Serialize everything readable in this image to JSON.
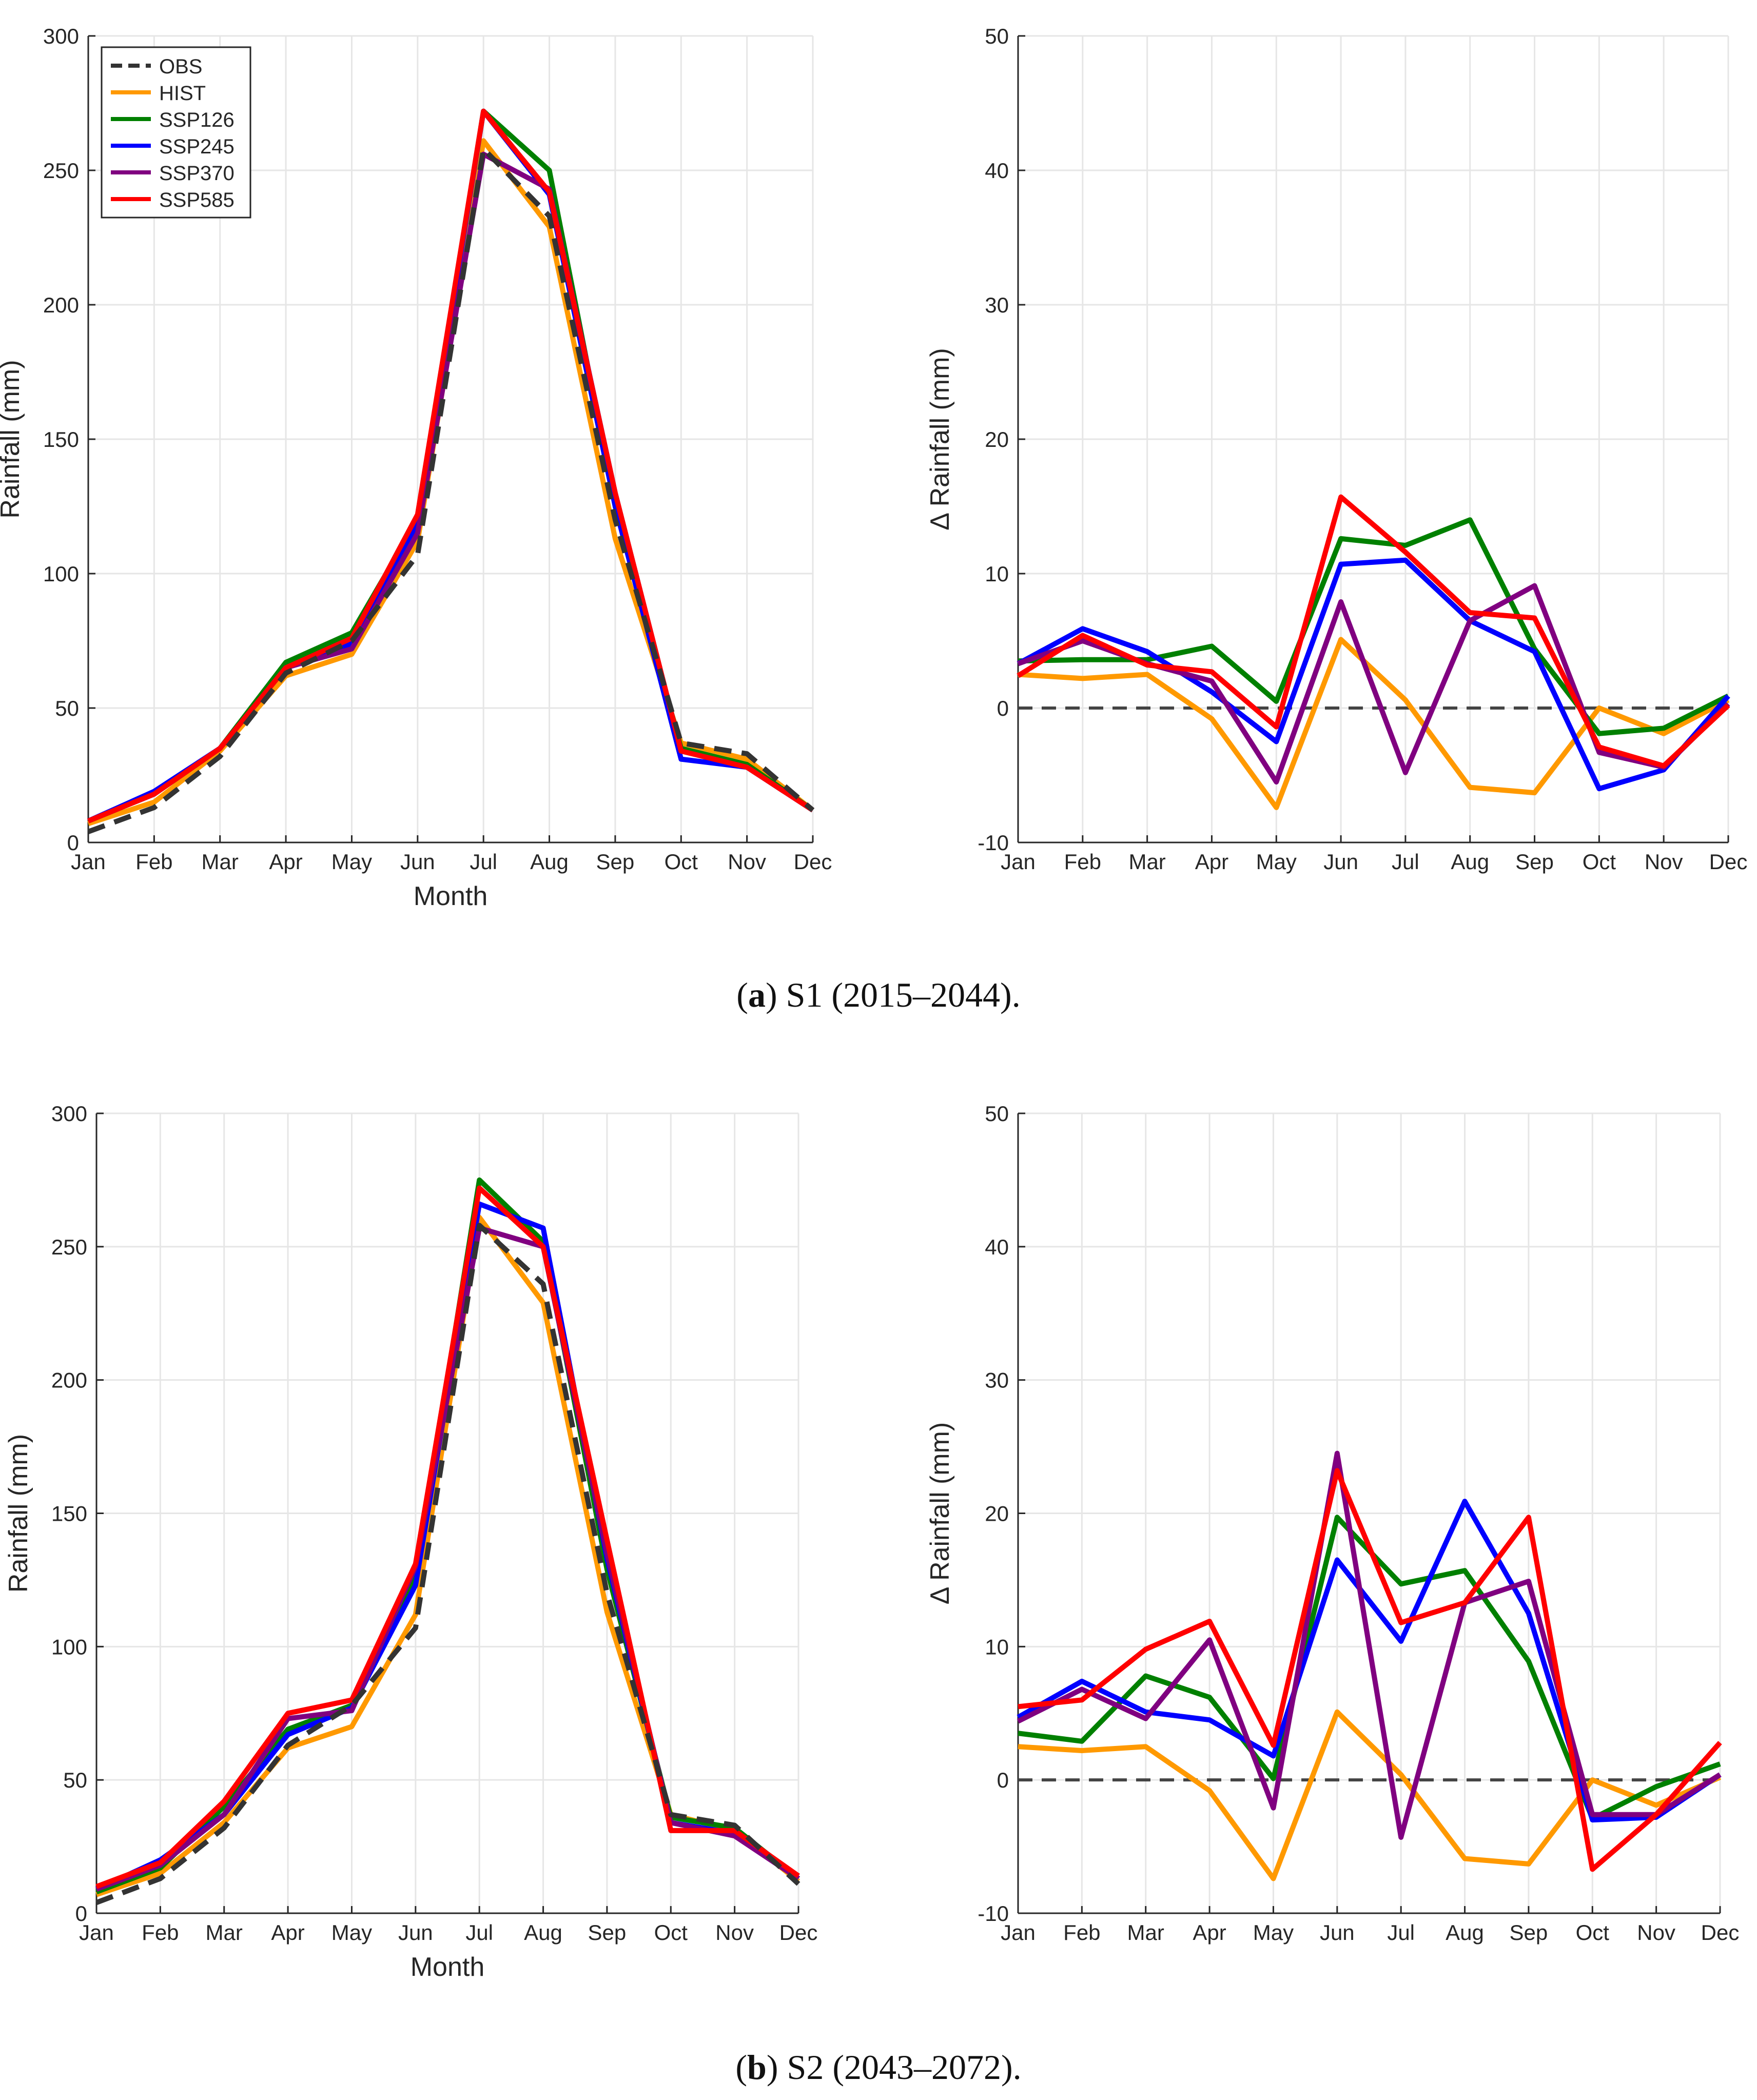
{
  "figure": {
    "caption_a": {
      "label": "a",
      "text": " S1 (2015–2044).",
      "open": "(",
      "close": ")"
    },
    "caption_b": {
      "label": "b",
      "text": " S2 (2043–2072).",
      "open": "(",
      "close": ")"
    }
  },
  "colors": {
    "OBS": "#333333",
    "HIST": "#FF9900",
    "SSP126": "#008000",
    "SSP245": "#0000FF",
    "SSP370": "#800080",
    "SSP585": "#FF0000"
  },
  "chart_data": [
    {
      "id": "a-left",
      "type": "line",
      "categories": [
        "Jan",
        "Feb",
        "Mar",
        "Apr",
        "May",
        "Jun",
        "Jul",
        "Aug",
        "Sep",
        "Oct",
        "Nov",
        "Dec"
      ],
      "xlabel": "Month",
      "ylabel": "Rainfall (mm)",
      "ylim": [
        0,
        300
      ],
      "yticks": [
        0,
        50,
        100,
        150,
        200,
        250,
        300
      ],
      "grid": true,
      "legend": "top-left",
      "series": [
        {
          "name": "OBS",
          "style": "dashed",
          "values": [
            4,
            13,
            32,
            63,
            75,
            107,
            258,
            233,
            120,
            37,
            33,
            12
          ]
        },
        {
          "name": "HIST",
          "values": [
            7,
            15,
            34,
            62,
            70,
            112,
            261,
            229,
            113,
            37,
            31,
            12
          ]
        },
        {
          "name": "SSP126",
          "values": [
            8,
            18,
            35,
            67,
            78,
            120,
            272,
            250,
            125,
            35,
            29,
            12
          ]
        },
        {
          "name": "SSP245",
          "values": [
            8,
            19,
            35,
            65,
            74,
            118,
            272,
            241,
            125,
            31,
            28,
            12
          ]
        },
        {
          "name": "SSP370",
          "values": [
            8,
            18,
            35,
            65,
            72,
            115,
            256,
            243,
            130,
            34,
            28,
            12
          ]
        },
        {
          "name": "SSP585",
          "values": [
            8,
            18,
            35,
            65,
            76,
            122,
            272,
            242,
            130,
            34,
            28,
            12
          ]
        }
      ]
    },
    {
      "id": "a-right",
      "type": "line",
      "categories": [
        "Jan",
        "Feb",
        "Mar",
        "Apr",
        "May",
        "Jun",
        "Jul",
        "Aug",
        "Sep",
        "Oct",
        "Nov",
        "Dec"
      ],
      "xlabel": "",
      "ylabel": "Δ Rainfall (mm)",
      "ylim": [
        -10,
        50
      ],
      "yticks": [
        -10,
        0,
        10,
        20,
        30,
        40,
        50
      ],
      "grid": true,
      "zero_line": true,
      "series": [
        {
          "name": "HIST",
          "values": [
            2.5,
            2.2,
            2.5,
            -0.8,
            -7.4,
            5.1,
            0.6,
            -5.9,
            -6.3,
            0.0,
            -1.9,
            0.6
          ]
        },
        {
          "name": "SSP126",
          "values": [
            3.5,
            3.6,
            3.6,
            4.6,
            0.5,
            12.6,
            12.1,
            14.0,
            4.4,
            -1.9,
            -1.5,
            0.9
          ]
        },
        {
          "name": "SSP245",
          "values": [
            3.3,
            5.9,
            4.2,
            1.2,
            -2.5,
            10.7,
            11.0,
            6.5,
            4.2,
            -6.0,
            -4.6,
            0.9
          ]
        },
        {
          "name": "SSP370",
          "values": [
            3.3,
            5.0,
            3.3,
            2.0,
            -5.5,
            7.9,
            -4.8,
            6.5,
            9.1,
            -3.3,
            -4.4,
            0.3
          ]
        },
        {
          "name": "SSP585",
          "values": [
            2.4,
            5.4,
            3.2,
            2.7,
            -1.4,
            15.7,
            11.6,
            7.1,
            6.7,
            -2.9,
            -4.3,
            0.2
          ]
        }
      ]
    },
    {
      "id": "b-left",
      "type": "line",
      "categories": [
        "Jan",
        "Feb",
        "Mar",
        "Apr",
        "May",
        "Jun",
        "Jul",
        "Aug",
        "Sep",
        "Oct",
        "Nov",
        "Dec"
      ],
      "xlabel": "Month",
      "ylabel": "Rainfall (mm)",
      "ylim": [
        0,
        300
      ],
      "yticks": [
        0,
        50,
        100,
        150,
        200,
        250,
        300
      ],
      "grid": true,
      "series": [
        {
          "name": "OBS",
          "style": "dashed",
          "values": [
            4,
            13,
            32,
            63,
            78,
            107,
            258,
            236,
            120,
            37,
            33,
            11
          ]
        },
        {
          "name": "HIST",
          "values": [
            7,
            15,
            34,
            62,
            70,
            112,
            261,
            229,
            113,
            37,
            31,
            12
          ]
        },
        {
          "name": "SSP126",
          "values": [
            8,
            17,
            40,
            69,
            78,
            126,
            275,
            252,
            129,
            36,
            32,
            13
          ]
        },
        {
          "name": "SSP245",
          "values": [
            9,
            20,
            37,
            67,
            77,
            123,
            266,
            257,
            133,
            34,
            30,
            13
          ]
        },
        {
          "name": "SSP370",
          "values": [
            9,
            18,
            37,
            73,
            76,
            130,
            257,
            250,
            135,
            34,
            29,
            13
          ]
        },
        {
          "name": "SSP585",
          "values": [
            10,
            19,
            42,
            75,
            80,
            131,
            272,
            250,
            140,
            31,
            31,
            14
          ]
        }
      ]
    },
    {
      "id": "b-right",
      "type": "line",
      "categories": [
        "Jan",
        "Feb",
        "Mar",
        "Apr",
        "May",
        "Jun",
        "Jul",
        "Aug",
        "Sep",
        "Oct",
        "Nov",
        "Dec"
      ],
      "xlabel": "",
      "ylabel": "Δ Rainfall (mm)",
      "ylim": [
        -10,
        50
      ],
      "yticks": [
        -10,
        0,
        10,
        20,
        30,
        40,
        50
      ],
      "grid": true,
      "zero_line": true,
      "series": [
        {
          "name": "HIST",
          "values": [
            2.5,
            2.2,
            2.5,
            -0.8,
            -7.4,
            5.1,
            0.4,
            -5.9,
            -6.3,
            0.0,
            -1.9,
            0.2
          ]
        },
        {
          "name": "SSP126",
          "values": [
            3.5,
            2.9,
            7.8,
            6.2,
            0.1,
            19.7,
            14.7,
            15.7,
            8.9,
            -2.9,
            -0.5,
            1.2
          ]
        },
        {
          "name": "SSP245",
          "values": [
            4.7,
            7.4,
            5.1,
            4.5,
            1.8,
            16.5,
            10.4,
            20.9,
            12.5,
            -3.0,
            -2.8,
            0.4
          ]
        },
        {
          "name": "SSP370",
          "values": [
            4.4,
            6.8,
            4.6,
            10.5,
            -2.1,
            24.5,
            -4.3,
            13.3,
            14.9,
            -2.6,
            -2.6,
            0.4
          ]
        },
        {
          "name": "SSP585",
          "values": [
            5.5,
            6.0,
            9.8,
            11.9,
            2.6,
            23.2,
            11.8,
            13.3,
            19.7,
            -6.7,
            -2.6,
            2.8
          ]
        }
      ]
    }
  ]
}
